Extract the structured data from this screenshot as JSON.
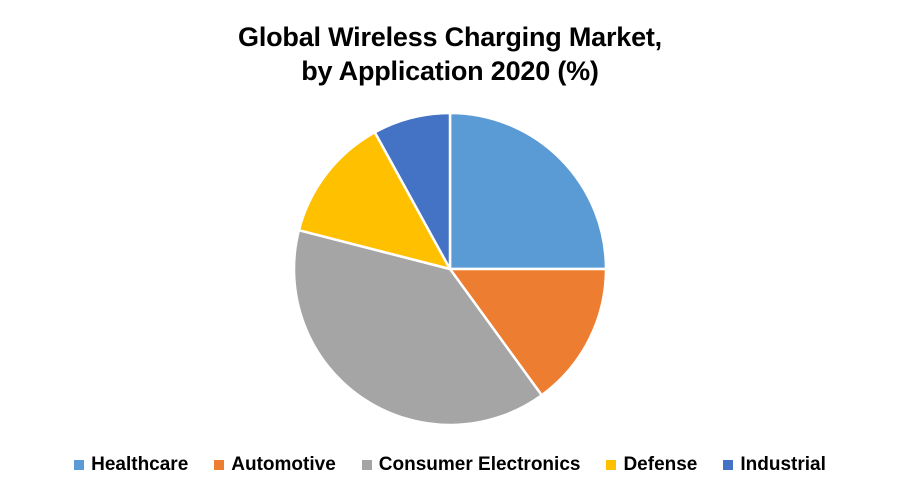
{
  "chart_data": {
    "type": "pie",
    "title_line1": "Global Wireless Charging Market,",
    "title_line2": "by Application 2020 (%)",
    "legend_position": "bottom",
    "slices": [
      {
        "label": "Healthcare",
        "value": 25,
        "color": "#5b9bd5"
      },
      {
        "label": "Automotive",
        "value": 15,
        "color": "#ed7d31"
      },
      {
        "label": "Consumer Electronics",
        "value": 39,
        "color": "#a5a5a5"
      },
      {
        "label": "Defense",
        "value": 13,
        "color": "#ffc000"
      },
      {
        "label": "Industrial",
        "value": 8,
        "color": "#4472c4"
      }
    ]
  }
}
